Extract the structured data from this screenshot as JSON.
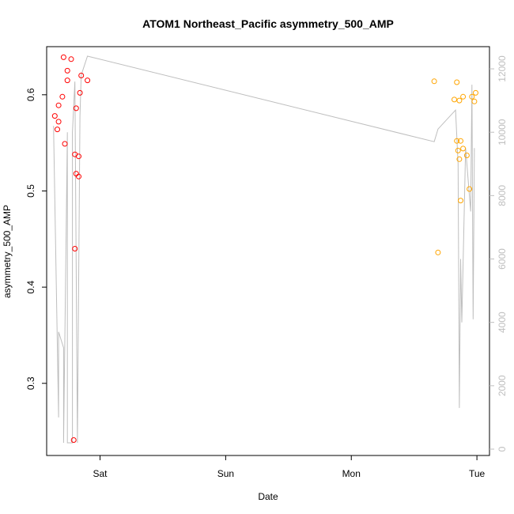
{
  "chart_data": {
    "type": "scatter",
    "title": "ATOM1 Northeast_Pacific asymmetry_500_AMP",
    "xlabel": "Date",
    "ylabel": "asymmetry_500_AMP",
    "x_unit": "days",
    "x_ticks": [
      {
        "label": "Sat",
        "value": 0
      },
      {
        "label": "Sun",
        "value": 1
      },
      {
        "label": "Mon",
        "value": 2
      },
      {
        "label": "Tue",
        "value": 3
      }
    ],
    "xlim": [
      -0.425,
      3.1
    ],
    "ylim": [
      0.225,
      0.65
    ],
    "y_ticks": [
      0.3,
      0.4,
      0.5,
      0.6
    ],
    "y2lim": [
      -200,
      12700
    ],
    "y2_ticks": [
      0,
      2000,
      4000,
      6000,
      8000,
      10000,
      12000
    ],
    "grid": false,
    "colors": {
      "series1": "#ff0000",
      "series2": "#ffa500",
      "line": "#bebebe"
    },
    "series": [
      {
        "name": "",
        "color": "#ff0000",
        "points": [
          [
            -0.36,
            0.578
          ],
          [
            -0.34,
            0.564
          ],
          [
            -0.33,
            0.572
          ],
          [
            -0.33,
            0.589
          ],
          [
            -0.3,
            0.598
          ],
          [
            -0.29,
            0.639
          ],
          [
            -0.28,
            0.549
          ],
          [
            -0.26,
            0.625
          ],
          [
            -0.26,
            0.615
          ],
          [
            -0.23,
            0.637
          ],
          [
            -0.2,
            0.44
          ],
          [
            -0.21,
            0.241
          ],
          [
            -0.2,
            0.538
          ],
          [
            -0.19,
            0.586
          ],
          [
            -0.19,
            0.518
          ],
          [
            -0.17,
            0.536
          ],
          [
            -0.17,
            0.515
          ],
          [
            -0.16,
            0.602
          ],
          [
            -0.15,
            0.62
          ],
          [
            -0.1,
            0.615
          ]
        ]
      },
      {
        "name": "",
        "color": "#ffa500",
        "points": [
          [
            2.66,
            0.614
          ],
          [
            2.69,
            0.436
          ],
          [
            2.82,
            0.595
          ],
          [
            2.84,
            0.552
          ],
          [
            2.84,
            0.613
          ],
          [
            2.85,
            0.542
          ],
          [
            2.86,
            0.594
          ],
          [
            2.86,
            0.533
          ],
          [
            2.87,
            0.552
          ],
          [
            2.87,
            0.49
          ],
          [
            2.89,
            0.598
          ],
          [
            2.89,
            0.544
          ],
          [
            2.92,
            0.537
          ],
          [
            2.94,
            0.502
          ],
          [
            2.96,
            0.598
          ],
          [
            2.98,
            0.593
          ],
          [
            2.99,
            0.602
          ]
        ]
      }
    ],
    "secondary_line": {
      "color": "#bebebe",
      "points": [
        [
          -0.37,
          10200
        ],
        [
          -0.33,
          1000
        ],
        [
          -0.33,
          3700
        ],
        [
          -0.29,
          3200
        ],
        [
          -0.29,
          200
        ],
        [
          -0.26,
          10000
        ],
        [
          -0.26,
          200
        ],
        [
          -0.22,
          200
        ],
        [
          -0.22,
          10000
        ],
        [
          -0.2,
          11600
        ],
        [
          -0.18,
          200
        ],
        [
          -0.16,
          10500
        ],
        [
          -0.15,
          11800
        ],
        [
          -0.1,
          12400
        ],
        [
          2.66,
          9700
        ],
        [
          2.69,
          10100
        ],
        [
          2.83,
          10700
        ],
        [
          2.85,
          9000
        ],
        [
          2.86,
          1300
        ],
        [
          2.87,
          6000
        ],
        [
          2.88,
          4000
        ],
        [
          2.91,
          9500
        ],
        [
          2.93,
          8500
        ],
        [
          2.95,
          7500
        ],
        [
          2.96,
          11500
        ],
        [
          2.97,
          4100
        ],
        [
          2.98,
          9500
        ]
      ]
    }
  }
}
